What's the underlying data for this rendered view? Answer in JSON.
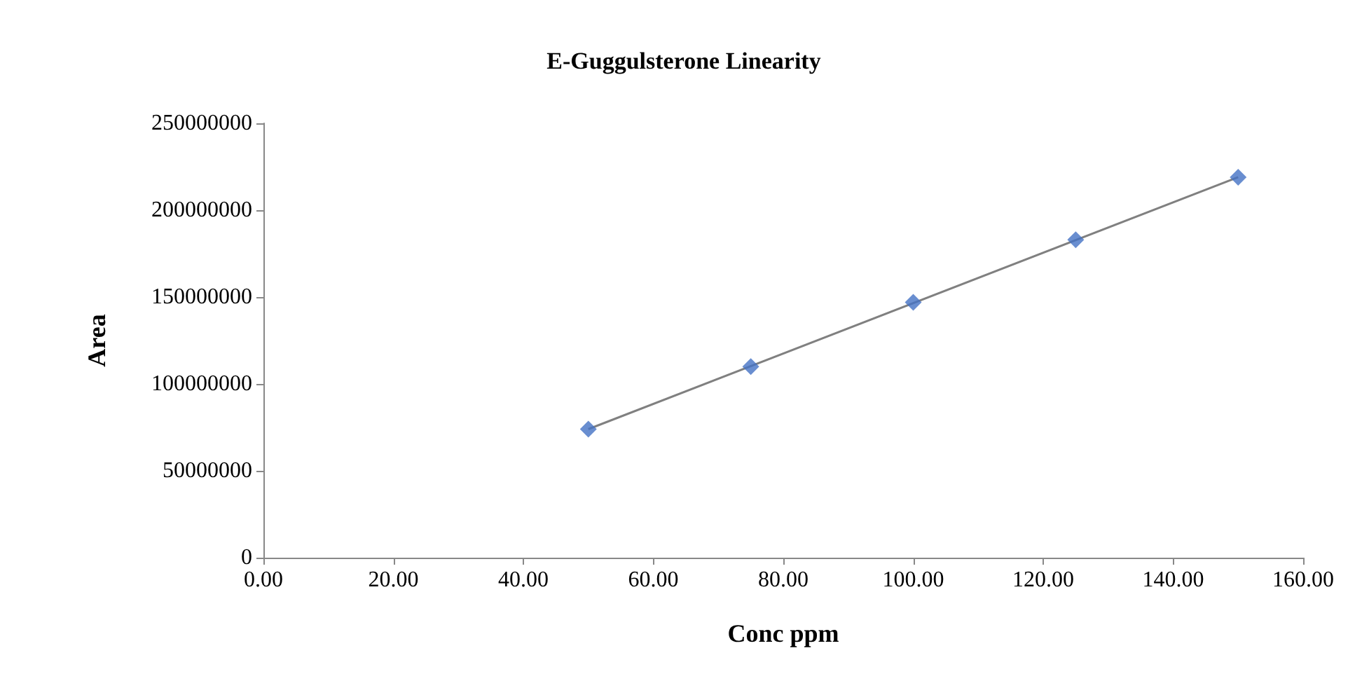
{
  "chart_data": {
    "type": "scatter",
    "title": "E-Guggulsterone Linearity",
    "xlabel": "Conc ppm",
    "ylabel": "Area",
    "grid": false,
    "series": [
      {
        "color": "#4472c4",
        "marker": "diamond",
        "x": [
          50,
          75,
          100,
          125,
          150
        ],
        "values": [
          74000000,
          110000000,
          147000000,
          183000000,
          219000000
        ]
      },
      {
        "type": "line",
        "color": "#808080",
        "marker": "none",
        "x": [
          50,
          150
        ],
        "values": [
          74000000,
          219000000
        ]
      }
    ],
    "xlim": [
      0,
      160
    ],
    "xticks": [
      {
        "value": 0,
        "label": "0.00"
      },
      {
        "value": 20,
        "label": "20.00"
      },
      {
        "value": 40,
        "label": "40.00"
      },
      {
        "value": 60,
        "label": "60.00"
      },
      {
        "value": 80,
        "label": "80.00"
      },
      {
        "value": 100,
        "label": "100.00"
      },
      {
        "value": 120,
        "label": "120.00"
      },
      {
        "value": 140,
        "label": "140.00"
      },
      {
        "value": 160,
        "label": "160.00"
      }
    ],
    "ylim": [
      0,
      250000000
    ],
    "yticks": [
      0,
      50000000,
      100000000,
      150000000,
      200000000,
      250000000
    ]
  }
}
